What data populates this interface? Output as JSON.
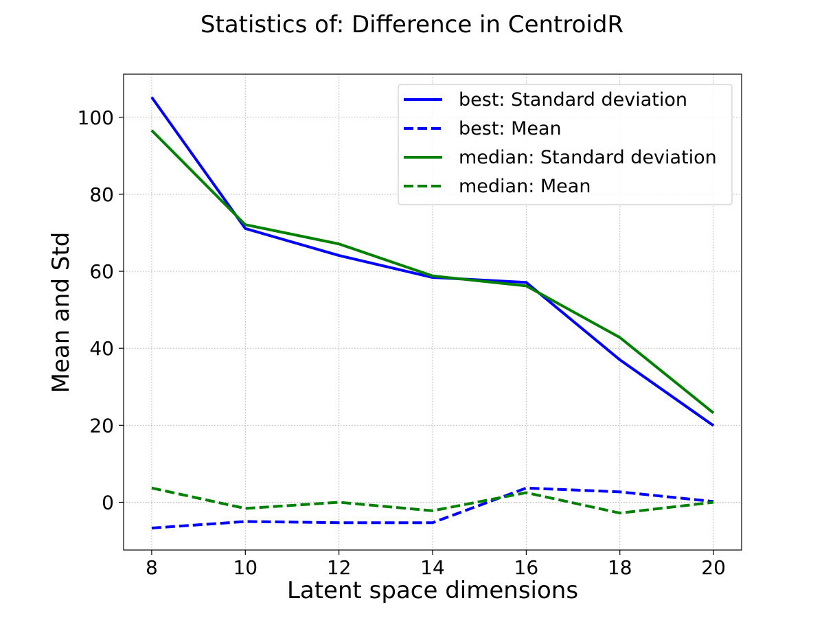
{
  "chart_data": {
    "type": "line",
    "title": "Statistics of: Difference in CentroidR",
    "xlabel": "Latent space dimensions",
    "ylabel": "Mean and Std",
    "x": [
      8,
      10,
      12,
      14,
      16,
      18,
      20
    ],
    "xticks": [
      "8",
      "10",
      "12",
      "14",
      "16",
      "18",
      "20"
    ],
    "yticks": [
      "0",
      "20",
      "40",
      "60",
      "80",
      "100"
    ],
    "xlim": [
      7.4,
      20.6
    ],
    "ylim": [
      -12.4,
      111.2
    ],
    "grid": true,
    "legend_position": "top-right",
    "series": [
      {
        "name": "best: Standard deviation",
        "color": "#0000ff",
        "style": "solid",
        "values": [
          105.2,
          71.1,
          64.1,
          58.4,
          57.1,
          37.0,
          19.9
        ]
      },
      {
        "name": "best: Mean",
        "color": "#0000ff",
        "style": "dashed",
        "values": [
          -6.7,
          -5.0,
          -5.3,
          -5.3,
          3.7,
          2.7,
          0.2
        ]
      },
      {
        "name": "median: Standard deviation",
        "color": "#008000",
        "style": "solid",
        "values": [
          96.6,
          72.1,
          67.1,
          58.8,
          56.2,
          42.8,
          23.2
        ]
      },
      {
        "name": "median: Mean",
        "color": "#008000",
        "style": "dashed",
        "values": [
          3.7,
          -1.6,
          0.0,
          -2.2,
          2.5,
          -2.8,
          0.0
        ]
      }
    ]
  }
}
